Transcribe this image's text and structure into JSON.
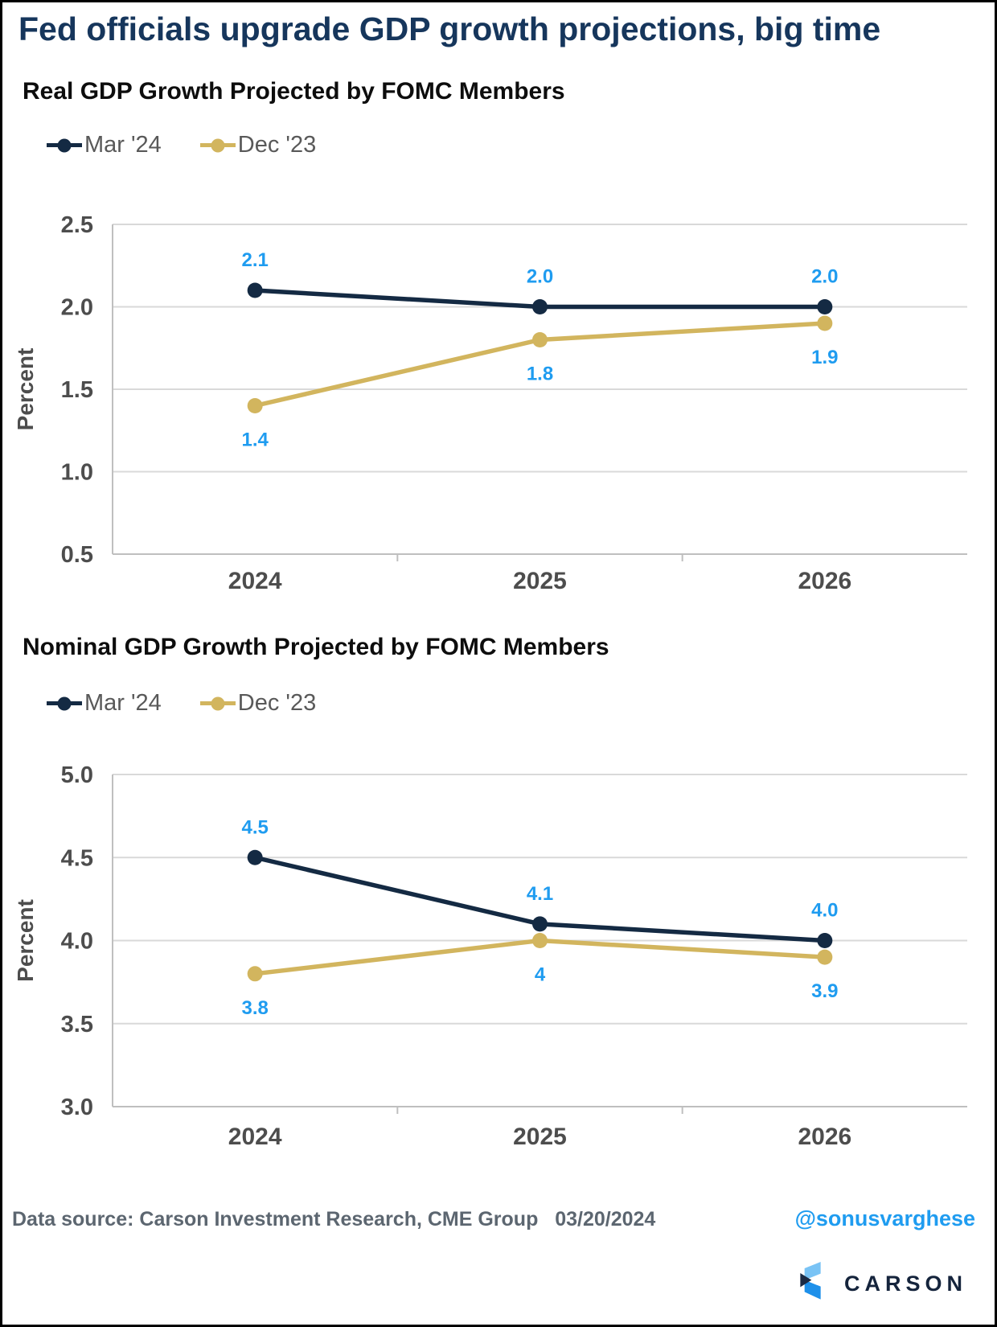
{
  "page": {
    "title": "Fed officials upgrade GDP growth projections, big time",
    "colors": {
      "title_navy": "#16365c",
      "axis_text": "#4d4d4d",
      "legend_text": "#595959",
      "gridline": "#d9d9d9",
      "axis_line": "#bfbfbf",
      "data_label_blue": "#1f9cf0",
      "series_navy": "#142a43",
      "series_gold": "#d2b55e",
      "footer_gray": "#5c6670",
      "handle_blue": "#1f9cf0"
    }
  },
  "chart_data": [
    {
      "type": "line",
      "title": "Real GDP Growth Projected by FOMC Members",
      "ylabel": "Percent",
      "categories": [
        "2024",
        "2025",
        "2026"
      ],
      "ylim": [
        0.5,
        2.5
      ],
      "yticks": [
        2.5,
        2.0,
        1.5,
        1.0,
        0.5
      ],
      "grid": true,
      "legend_position": "top-left",
      "label_color": "#1f9cf0",
      "series": [
        {
          "name": "Mar '24",
          "color": "#142a43",
          "values": [
            2.1,
            2.0,
            2.0
          ],
          "labels": [
            "2.1",
            "2.0",
            "2.0"
          ],
          "label_position": "above"
        },
        {
          "name": "Dec '23",
          "color": "#d2b55e",
          "values": [
            1.4,
            1.8,
            1.9
          ],
          "labels": [
            "1.4",
            "1.8",
            "1.9"
          ],
          "label_position": "below"
        }
      ]
    },
    {
      "type": "line",
      "title": "Nominal GDP Growth Projected by FOMC Members",
      "ylabel": "Percent",
      "categories": [
        "2024",
        "2025",
        "2026"
      ],
      "ylim": [
        3.0,
        5.0
      ],
      "yticks": [
        5.0,
        4.5,
        4.0,
        3.5,
        3.0
      ],
      "grid": true,
      "legend_position": "top-left",
      "label_color": "#1f9cf0",
      "series": [
        {
          "name": "Mar '24",
          "color": "#142a43",
          "values": [
            4.5,
            4.1,
            4.0
          ],
          "labels": [
            "4.5",
            "4.1",
            "4.0"
          ],
          "label_position": "above"
        },
        {
          "name": "Dec '23",
          "color": "#d2b55e",
          "values": [
            3.8,
            4.0,
            3.9
          ],
          "labels": [
            "3.8",
            "4",
            "3.9"
          ],
          "label_position": "below"
        }
      ]
    }
  ],
  "footer": {
    "source_text": "Data source: Carson Investment Research, CME Group",
    "date": "03/20/2024",
    "handle": "@sonusvarghese",
    "brand": "CARSON"
  }
}
